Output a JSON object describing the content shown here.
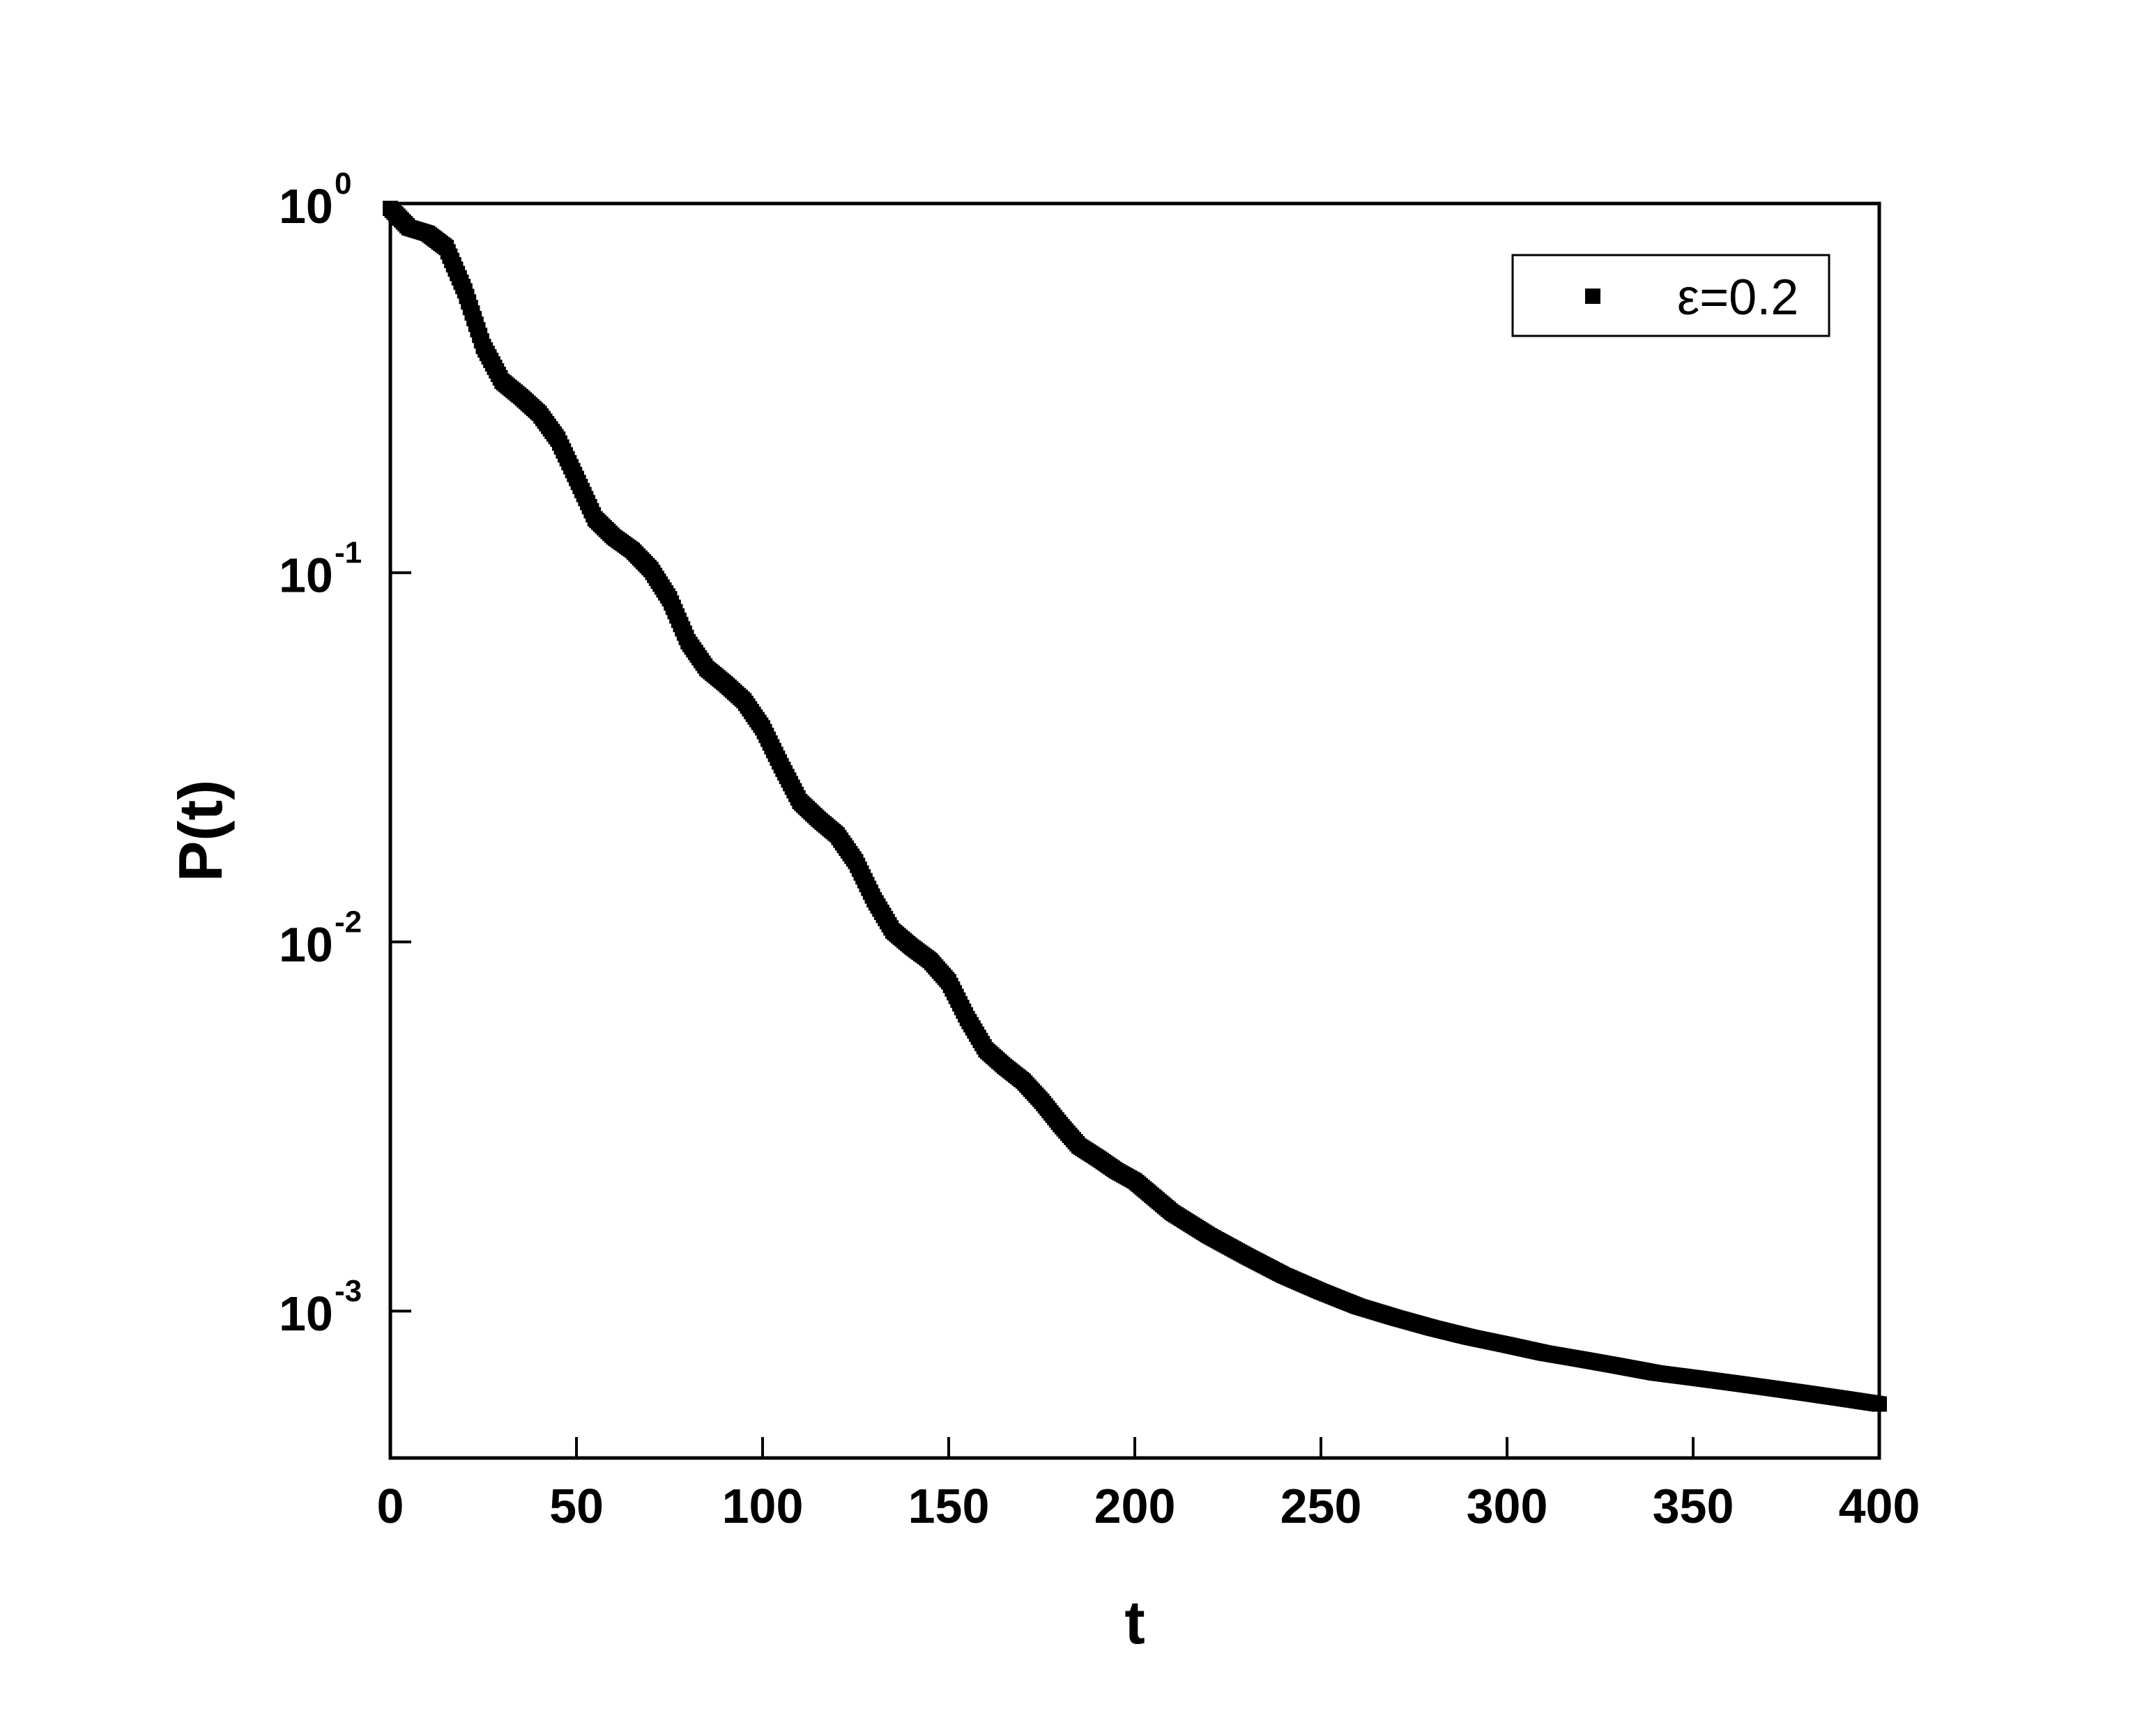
{
  "chart_data": {
    "type": "scatter",
    "title": "",
    "xlabel": "t",
    "ylabel": "P(t)",
    "xlim": [
      0,
      400
    ],
    "ylim": [
      0.0004,
      1
    ],
    "yscale": "log",
    "grid": false,
    "legend_position": "top-right",
    "x_ticks": [
      {
        "value": 0,
        "label": "0"
      },
      {
        "value": 50,
        "label": "50"
      },
      {
        "value": 100,
        "label": "100"
      },
      {
        "value": 150,
        "label": "150"
      },
      {
        "value": 200,
        "label": "200"
      },
      {
        "value": 250,
        "label": "250"
      },
      {
        "value": 300,
        "label": "300"
      },
      {
        "value": 350,
        "label": "350"
      },
      {
        "value": 400,
        "label": "400"
      }
    ],
    "y_ticks": [
      {
        "value": 1,
        "base": "10",
        "exponent": "0"
      },
      {
        "value": 0.1,
        "base": "10",
        "exponent": "-1"
      },
      {
        "value": 0.01,
        "base": "10",
        "exponent": "-2"
      },
      {
        "value": 0.001,
        "base": "10",
        "exponent": "-3"
      }
    ],
    "series": [
      {
        "name": "ε=0.2",
        "marker": "square",
        "color": "#000000",
        "x": [
          0,
          5,
          10,
          15,
          20,
          25,
          30,
          35,
          40,
          45,
          50,
          55,
          60,
          65,
          70,
          75,
          80,
          85,
          90,
          95,
          100,
          105,
          110,
          115,
          120,
          125,
          130,
          135,
          140,
          145,
          150,
          155,
          160,
          165,
          170,
          175,
          180,
          185,
          190,
          195,
          200,
          210,
          220,
          230,
          240,
          250,
          260,
          270,
          280,
          290,
          300,
          310,
          320,
          330,
          340,
          350,
          360,
          370,
          380,
          390,
          400
        ],
        "y": [
          0.97,
          0.86,
          0.83,
          0.76,
          0.58,
          0.41,
          0.33,
          0.3,
          0.27,
          0.23,
          0.18,
          0.14,
          0.125,
          0.115,
          0.102,
          0.085,
          0.065,
          0.055,
          0.05,
          0.045,
          0.038,
          0.03,
          0.024,
          0.0215,
          0.0195,
          0.0165,
          0.013,
          0.0107,
          0.0097,
          0.0089,
          0.0078,
          0.0062,
          0.0051,
          0.0046,
          0.0042,
          0.0037,
          0.0032,
          0.0028,
          0.0026,
          0.0024,
          0.00225,
          0.00185,
          0.0016,
          0.00141,
          0.00125,
          0.00113,
          0.00103,
          0.00096,
          0.0009,
          0.00085,
          0.00081,
          0.00077,
          0.00074,
          0.00071,
          0.00068,
          0.00066,
          0.00064,
          0.00062,
          0.0006,
          0.00058,
          0.00056
        ]
      }
    ]
  }
}
